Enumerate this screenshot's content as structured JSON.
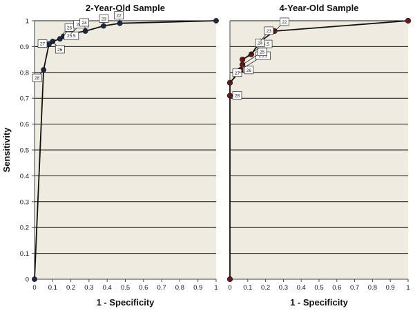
{
  "figure": {
    "ylabel": "Sensitivity",
    "colors": {
      "plot_bg": "#efebe0",
      "grid": "#111111",
      "line": "#111111",
      "marker_left": "#1c2a44",
      "marker_right": "#6a1a1a"
    }
  },
  "chart_data": [
    {
      "type": "line",
      "title": "2-Year-Old Sample",
      "xlabel": "1 - Specificity",
      "ylabel": "Sensitivity",
      "xlim": [
        0,
        1
      ],
      "ylim": [
        0,
        1
      ],
      "xticks": [
        "0",
        "0.1",
        "0.2",
        "0.3",
        "0.4",
        "0.5",
        "0.6",
        "0.7",
        "0.8",
        "0.9",
        "1"
      ],
      "yticks": [
        "0",
        "0.1",
        "0.2",
        "0.3",
        "0.4",
        "0.5",
        "0.6",
        "0.7",
        "0.8",
        "0.9",
        "1"
      ],
      "grid": "horizontal",
      "points": [
        {
          "x": 0.0,
          "y": 0.0,
          "label": ""
        },
        {
          "x": 0.05,
          "y": 0.81,
          "label": "28"
        },
        {
          "x": 0.08,
          "y": 0.91,
          "label": "27"
        },
        {
          "x": 0.1,
          "y": 0.92,
          "label": "26"
        },
        {
          "x": 0.14,
          "y": 0.93,
          "label": "25.5"
        },
        {
          "x": 0.16,
          "y": 0.94,
          "label": "25"
        },
        {
          "x": 0.2,
          "y": 0.95,
          "label": "24.5"
        },
        {
          "x": 0.28,
          "y": 0.96,
          "label": "24"
        },
        {
          "x": 0.38,
          "y": 0.98,
          "label": "23"
        },
        {
          "x": 0.47,
          "y": 0.99,
          "label": "22"
        },
        {
          "x": 1.0,
          "y": 1.0,
          "label": ""
        }
      ]
    },
    {
      "type": "line",
      "title": "4-Year-Old Sample",
      "xlabel": "1 - Specificity",
      "ylabel": "",
      "xlim": [
        0,
        1
      ],
      "ylim": [
        0,
        1
      ],
      "xticks": [
        "0",
        "0.1",
        "0.2",
        "0.3",
        "0.4",
        "0.5",
        "0.6",
        "0.7",
        "0.8",
        "0.9",
        "1"
      ],
      "yticks": [],
      "grid": "horizontal",
      "points": [
        {
          "x": 0.0,
          "y": 0.0,
          "label": ""
        },
        {
          "x": 0.0,
          "y": 0.71,
          "label": "28"
        },
        {
          "x": 0.0,
          "y": 0.76,
          "label": "27"
        },
        {
          "x": 0.05,
          "y": 0.8,
          "label": "26"
        },
        {
          "x": 0.06,
          "y": 0.81,
          "label": "25.5"
        },
        {
          "x": 0.07,
          "y": 0.83,
          "label": "25"
        },
        {
          "x": 0.07,
          "y": 0.85,
          "label": "24.5"
        },
        {
          "x": 0.12,
          "y": 0.87,
          "label": "24"
        },
        {
          "x": 0.17,
          "y": 0.92,
          "label": "23"
        },
        {
          "x": 0.25,
          "y": 0.96,
          "label": "22"
        },
        {
          "x": 1.0,
          "y": 1.0,
          "label": ""
        }
      ]
    }
  ]
}
